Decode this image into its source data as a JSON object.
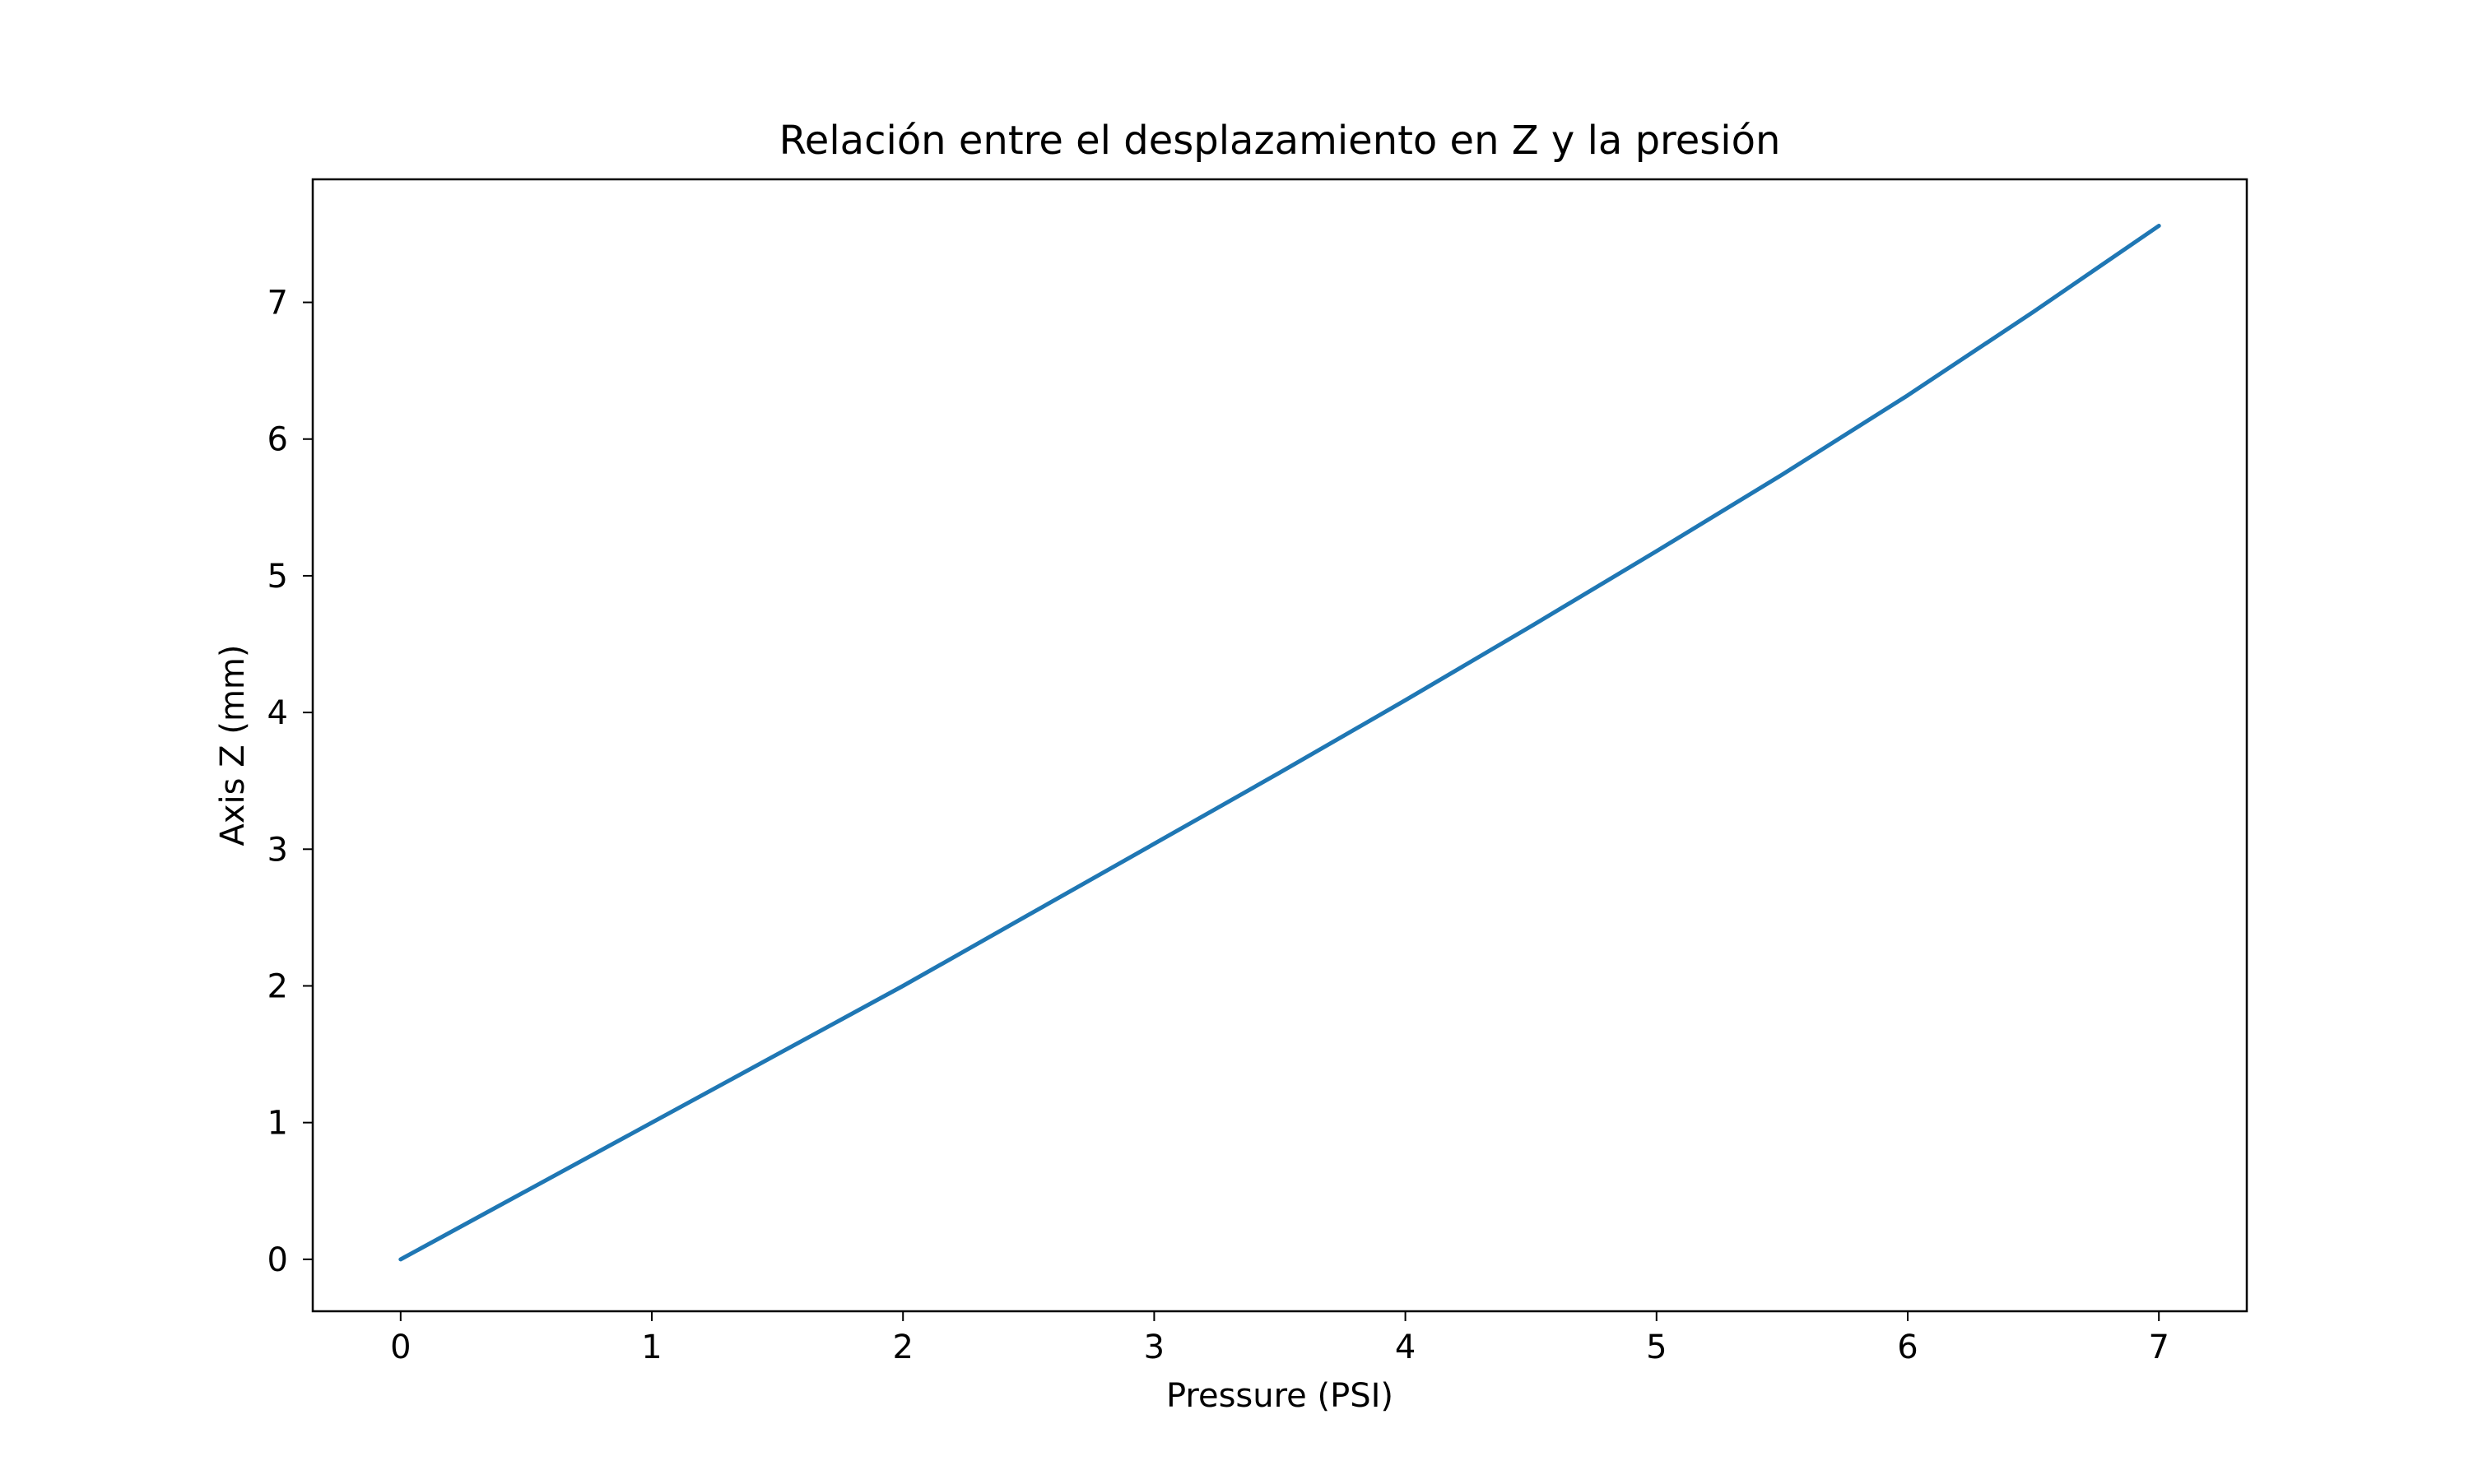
{
  "chart_data": {
    "type": "line",
    "title": "Relación entre el desplazamiento en Z y la presión",
    "xlabel": "Pressure (PSI)",
    "ylabel": "Axis Z (mm)",
    "xlim": [
      -0.35,
      7.35
    ],
    "ylim": [
      -0.38,
      7.9
    ],
    "xticks": [
      0,
      1,
      2,
      3,
      4,
      5,
      6,
      7
    ],
    "yticks": [
      0,
      1,
      2,
      3,
      4,
      5,
      6,
      7
    ],
    "grid": false,
    "legend": "none",
    "colors": {
      "series": "#1f77b4",
      "axes": "#000000",
      "background": "#ffffff"
    },
    "series": [
      {
        "x": [
          0,
          0.5,
          1,
          1.5,
          2,
          2.5,
          3,
          3.5,
          4,
          4.5,
          5,
          5.5,
          6,
          6.5,
          7
        ],
        "y": [
          0,
          0.5,
          1.0,
          1.5,
          2.0,
          2.52,
          3.04,
          3.56,
          4.09,
          4.63,
          5.18,
          5.74,
          6.32,
          6.93,
          7.56
        ]
      }
    ]
  }
}
